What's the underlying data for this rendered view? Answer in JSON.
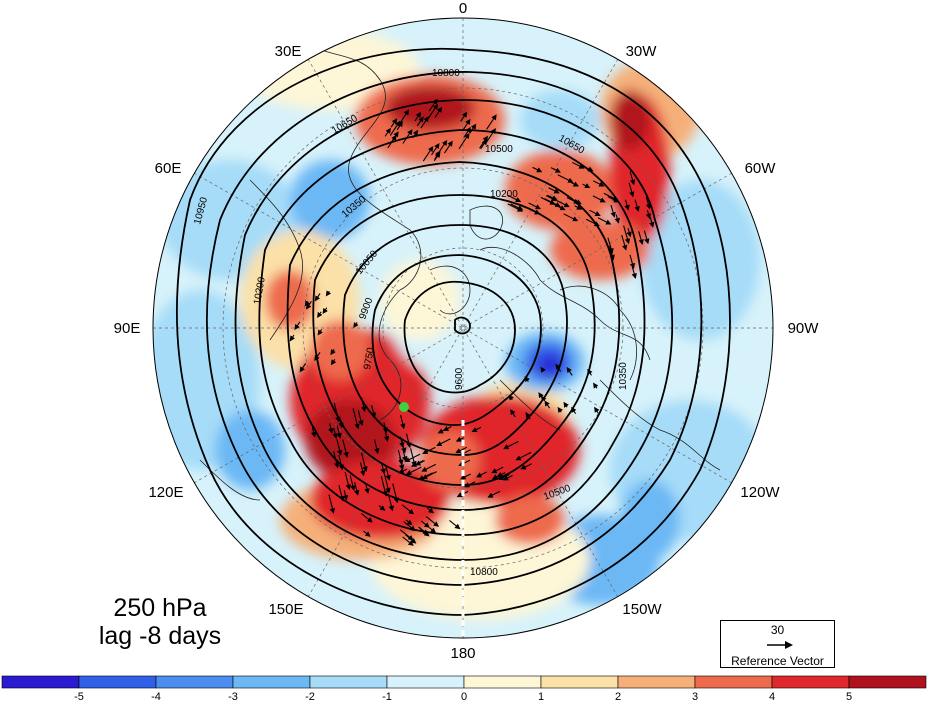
{
  "title": {
    "line1": "250 hPa",
    "line2": "lag -8 days"
  },
  "longitude_labels": {
    "n0": "0",
    "n30w": "30W",
    "n60w": "60W",
    "n90w": "90W",
    "n120w": "120W",
    "n150w": "150W",
    "n180": "180",
    "n150e": "150E",
    "n120e": "120E",
    "n90e": "90E",
    "n60e": "60E",
    "n30e": "30E"
  },
  "contour_labels": [
    "10800",
    "10650",
    "10500",
    "10350",
    "10200",
    "10050",
    "9900",
    "9750",
    "9600",
    "10950",
    "10800",
    "10650",
    "10500",
    "10350",
    "10200"
  ],
  "reference_vector": {
    "value": "30",
    "caption": "Reference Vector"
  },
  "colorbar": {
    "ticks": [
      "-5",
      "-4",
      "-3",
      "-2",
      "-1",
      "0",
      "1",
      "2",
      "3",
      "4",
      "5"
    ],
    "colors": [
      "#2a1bd1",
      "#3060e8",
      "#4c8ef0",
      "#6cb8f5",
      "#a6dcf8",
      "#d7f2fa",
      "#fdf6d7",
      "#fbe0a8",
      "#f5b07a",
      "#ee6a4d",
      "#e0282c",
      "#b0121d"
    ]
  },
  "marker_color": "#3fd13f"
}
